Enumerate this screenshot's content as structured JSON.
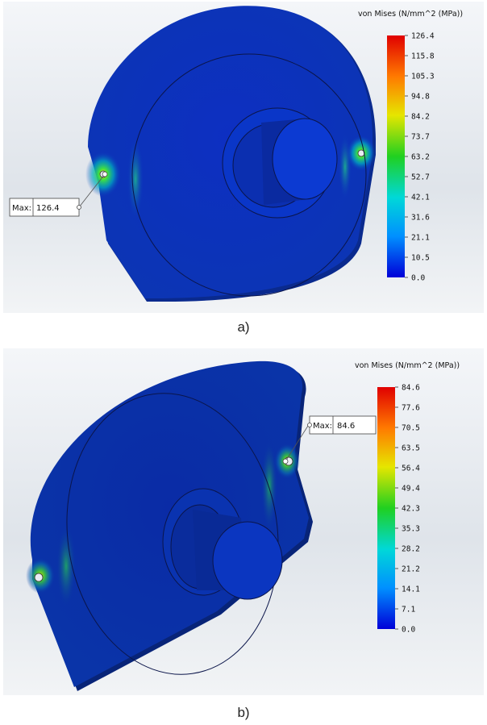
{
  "figure_a": {
    "legend_title": "von Mises (N/mm^2 (MPa))",
    "ticks": [
      "126.4",
      "115.8",
      "105.3",
      "94.8",
      "84.2",
      "73.7",
      "63.2",
      "52.7",
      "42.1",
      "31.6",
      "21.1",
      "10.5",
      "0.0"
    ],
    "callout_label": "Max:",
    "callout_value": "126.4",
    "caption": "a)"
  },
  "figure_b": {
    "legend_title": "von Mises (N/mm^2 (MPa))",
    "ticks": [
      "84.6",
      "77.6",
      "70.5",
      "63.5",
      "56.4",
      "49.4",
      "42.3",
      "35.3",
      "28.2",
      "21.2",
      "14.1",
      "7.1",
      "0.0"
    ],
    "callout_label": "Max:",
    "callout_value": "84.6",
    "caption": "b)"
  },
  "colors": {
    "scale_top": "#e00000",
    "scale_bottom": "#0000d8",
    "part_base": "#0a2fb8"
  }
}
